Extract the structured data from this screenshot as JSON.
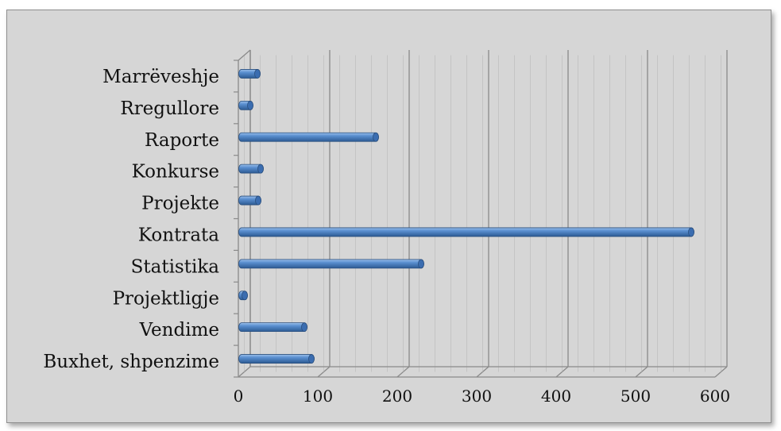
{
  "chart_data": {
    "type": "bar",
    "orientation": "horizontal",
    "style": "3d-cylinder",
    "categories": [
      "Buxhet, shpenzime",
      "Vendime",
      "Projektligje",
      "Statistika",
      "Kontrata",
      "Projekte",
      "Konkurse",
      "Raporte",
      "Rregullore",
      "Marrëveshje"
    ],
    "values": [
      92,
      83,
      7,
      230,
      570,
      25,
      28,
      173,
      15,
      24
    ],
    "x_ticks": [
      0,
      100,
      200,
      300,
      400,
      500,
      600
    ],
    "xlim": [
      0,
      600
    ],
    "grid": true,
    "legend": false,
    "colors": {
      "bar": "#4f81bd",
      "bar_dark": "#2c5a93",
      "bar_light": "#7ea6d8",
      "background": "#d6d6d6",
      "grid": "#8a8a8a"
    }
  }
}
